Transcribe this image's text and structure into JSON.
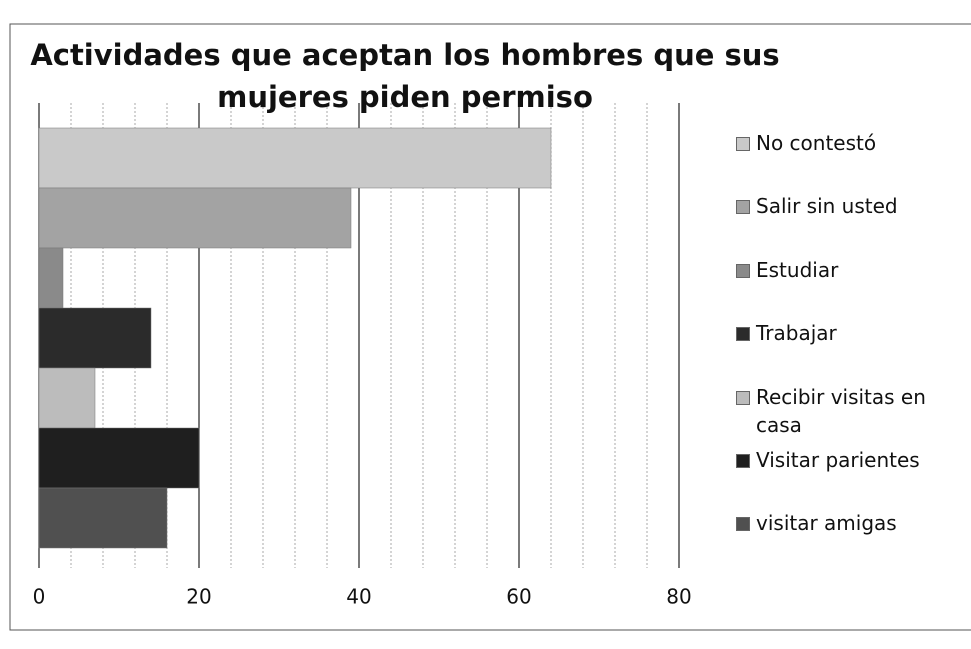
{
  "chart_data": {
    "type": "hbar",
    "title": "Actividades que aceptan los hombres que sus mujeres piden permiso",
    "categories": [
      "No contestó",
      "Salir sin usted",
      "Estudiar",
      "Trabajar",
      "Recibir visitas en casa",
      "Visitar parientes",
      "visitar amigas"
    ],
    "values": [
      64,
      39,
      3,
      14,
      7,
      20,
      16
    ],
    "colors": [
      "#c9c9c9",
      "#a3a3a3",
      "#8a8a8a",
      "#2b2b2b",
      "#bcbcbc",
      "#1f1f1f",
      "#505050"
    ],
    "xlim": [
      0,
      80
    ],
    "xticks": [
      0,
      20,
      40,
      60,
      80
    ],
    "grid": true,
    "legend": "right"
  }
}
